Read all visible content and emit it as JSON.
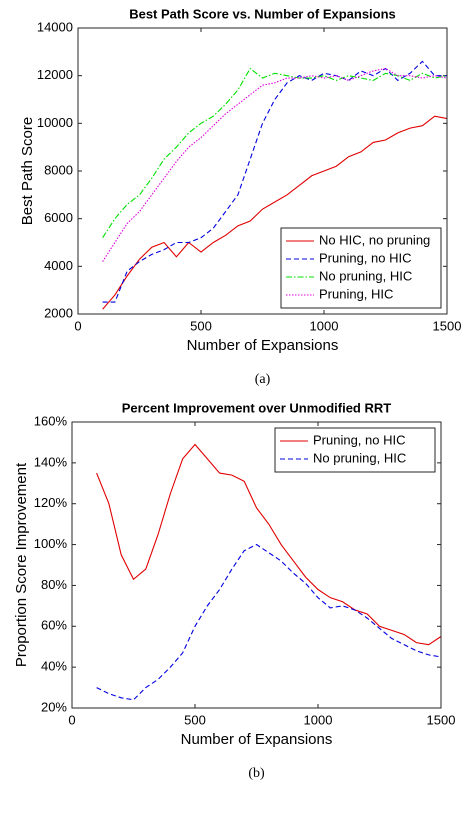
{
  "chart_data": [
    {
      "type": "line",
      "title": "Best Path Score vs. Number of Expansions",
      "x_label": "Number of Expansions",
      "y_label": "Best Path Score",
      "caption": "(a)",
      "x": [
        100,
        150,
        200,
        250,
        300,
        350,
        400,
        450,
        500,
        550,
        600,
        650,
        700,
        750,
        800,
        850,
        900,
        950,
        1000,
        1050,
        1100,
        1150,
        1200,
        1250,
        1300,
        1350,
        1400,
        1450,
        1500
      ],
      "series": [
        {
          "name": "No HIC, no pruning",
          "color": "#e00000",
          "linestyle": "solid",
          "values": [
            2200,
            2800,
            3600,
            4300,
            4800,
            5000,
            4400,
            5000,
            4600,
            5000,
            5300,
            5700,
            5900,
            6400,
            6700,
            7000,
            7400,
            7800,
            8000,
            8200,
            8600,
            8800,
            9200,
            9300,
            9600,
            9800,
            9900,
            10300,
            10200
          ]
        },
        {
          "name": "Pruning, no HIC",
          "color": "#0000e0",
          "linestyle": "dashed",
          "values": [
            2500,
            2500,
            3800,
            4200,
            4500,
            4700,
            5000,
            5000,
            5200,
            5600,
            6300,
            7000,
            8500,
            10000,
            11000,
            11700,
            12000,
            11800,
            12100,
            12000,
            11800,
            12200,
            12000,
            12300,
            11800,
            12100,
            12600,
            12000,
            12000
          ]
        },
        {
          "name": "No pruning, HIC",
          "color": "#00e000",
          "linestyle": "dashdot",
          "values": [
            5200,
            6000,
            6600,
            7000,
            7700,
            8500,
            9000,
            9600,
            10000,
            10300,
            10800,
            11400,
            12300,
            11900,
            12100,
            12000,
            11900,
            11900,
            12000,
            11800,
            12000,
            11900,
            11800,
            12100,
            12000,
            11800,
            12100,
            11900,
            12000
          ]
        },
        {
          "name": "Pruning, HIC",
          "color": "#e000e0",
          "linestyle": "dotted",
          "values": [
            4200,
            5000,
            5800,
            6300,
            7000,
            7700,
            8400,
            9000,
            9400,
            9900,
            10400,
            10800,
            11200,
            11600,
            11700,
            11900,
            11900,
            12000,
            11900,
            12000,
            11800,
            12000,
            12200,
            12300,
            12000,
            12000,
            11900,
            12000,
            11900
          ]
        }
      ],
      "xlim": [
        0,
        1500
      ],
      "xticks": [
        0,
        500,
        1000,
        1500
      ],
      "ylim": [
        2000,
        14000
      ],
      "yticks": [
        2000,
        4000,
        6000,
        8000,
        10000,
        12000,
        14000
      ],
      "legend": "lower right",
      "grid": false
    },
    {
      "type": "line",
      "title": "Percent Improvement over Unmodified RRT",
      "x_label": "Number of Expansions",
      "y_label": "Proportion Score Improvement",
      "caption": "(b)",
      "x": [
        100,
        150,
        200,
        250,
        300,
        350,
        400,
        450,
        500,
        550,
        600,
        650,
        700,
        750,
        800,
        850,
        900,
        950,
        1000,
        1050,
        1100,
        1150,
        1200,
        1250,
        1300,
        1350,
        1400,
        1450,
        1500
      ],
      "series": [
        {
          "name": "Pruning, no HIC",
          "color": "#e00000",
          "linestyle": "solid",
          "values": [
            135,
            120,
            95,
            83,
            88,
            105,
            125,
            142,
            149,
            142,
            135,
            134,
            131,
            118,
            110,
            100,
            92,
            84,
            78,
            74,
            72,
            68,
            66,
            60,
            58,
            56,
            52,
            51,
            55
          ]
        },
        {
          "name": "No pruning, HIC",
          "color": "#0000e0",
          "linestyle": "dashed",
          "values": [
            30,
            27,
            25,
            24,
            30,
            34,
            40,
            47,
            60,
            70,
            78,
            88,
            97,
            100,
            96,
            92,
            86,
            81,
            74,
            69,
            70,
            68,
            64,
            59,
            54,
            51,
            48,
            46,
            45
          ]
        }
      ],
      "xlim": [
        0,
        1500
      ],
      "xticks": [
        0,
        500,
        1000,
        1500
      ],
      "ylim": [
        20,
        160
      ],
      "yticks": [
        {
          "value": 20,
          "label": "20%"
        },
        {
          "value": 40,
          "label": "40%"
        },
        {
          "value": 60,
          "label": "60%"
        },
        {
          "value": 80,
          "label": "80%"
        },
        {
          "value": 100,
          "label": "100%"
        },
        {
          "value": 120,
          "label": "120%"
        },
        {
          "value": 140,
          "label": "140%"
        },
        {
          "value": 160,
          "label": "160%"
        }
      ],
      "legend": "upper right",
      "grid": false
    }
  ]
}
